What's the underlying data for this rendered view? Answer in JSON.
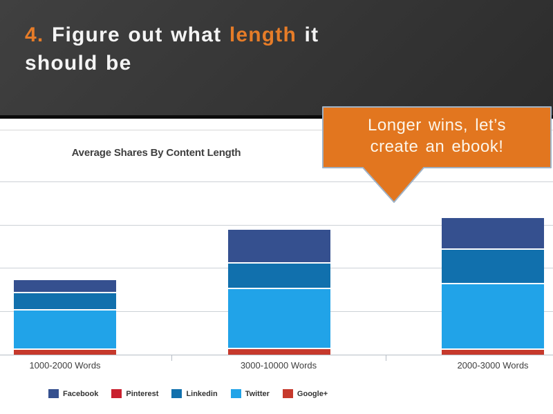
{
  "header": {
    "title_number": "4. ",
    "title_pre": "Figure out what ",
    "title_highlight": "length",
    "title_post": " it",
    "title_line2": "should be",
    "accent_color": "#e67c28",
    "background_color": "#373737"
  },
  "callout": {
    "line1": "Longer wins, let’s",
    "line2": "create an ebook!",
    "fill_color": "#e2761f",
    "border_color": "#9fb2c6",
    "text_color": "#fcf5e9"
  },
  "chart_data": {
    "type": "bar",
    "stacked": true,
    "title": "Average Shares By Content Length",
    "categories": [
      "1000-2000 Words",
      "3000-10000 Words",
      "2000-3000 Words"
    ],
    "series": [
      {
        "name": "Facebook",
        "color": "#35508f",
        "values": [
          270,
          750,
          690
        ]
      },
      {
        "name": "Pinterest",
        "color": "#c9202e",
        "values": [
          0,
          0,
          0
        ]
      },
      {
        "name": "Linkedin",
        "color": "#1170ad",
        "values": [
          400,
          590,
          800
        ]
      },
      {
        "name": "Twitter",
        "color": "#21a3e8",
        "values": [
          900,
          1390,
          1510
        ]
      },
      {
        "name": "Google+",
        "color": "#c6392c",
        "values": [
          150,
          160,
          150
        ]
      }
    ],
    "stack_order_bottom_to_top": [
      "Google+",
      "Twitter",
      "Linkedin",
      "Pinterest",
      "Facebook"
    ],
    "legend": [
      "Facebook",
      "Pinterest",
      "Linkedin",
      "Twitter",
      "Google+"
    ],
    "legend_position": "bottom",
    "xlabel": "",
    "ylabel": "",
    "yaxis_labels_visible": false,
    "gridlines": true,
    "units_per_gridline": 1000
  }
}
